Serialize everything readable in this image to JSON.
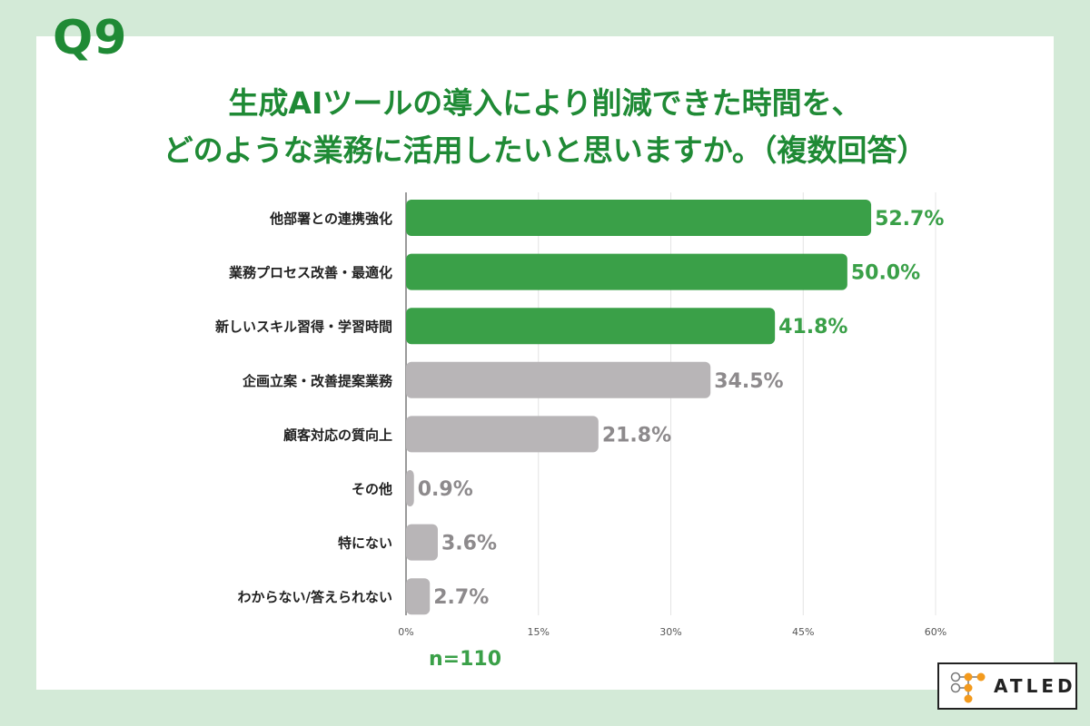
{
  "question_label": "Q9",
  "title_line1": "生成AIツールの導入により削減できた時間を、",
  "title_line2": "どのような業務に活用したいと思いますか。（複数回答）",
  "sample_size": "n=110",
  "logo_text": "ATLED",
  "colors": {
    "highlight": "#3aa048",
    "normal": "#b8b5b7",
    "title": "#1f8a35",
    "background": "#d3ead7",
    "highlight_label": "#3aa048",
    "normal_label": "#8d8a8c"
  },
  "chart_data": {
    "type": "bar",
    "orientation": "horizontal",
    "categories": [
      "他部署との連携強化",
      "業務プロセス改善・最適化",
      "新しいスキル習得・学習時間",
      "企画立案・改善提案業務",
      "顧客対応の質向上",
      "その他",
      "特にない",
      "わからない/答えられない"
    ],
    "values": [
      52.7,
      50.0,
      41.8,
      34.5,
      21.8,
      0.9,
      3.6,
      2.7
    ],
    "value_labels": [
      "52.7%",
      "50.0%",
      "41.8%",
      "34.5%",
      "21.8%",
      "0.9%",
      "3.6%",
      "2.7%"
    ],
    "highlighted": [
      true,
      true,
      true,
      false,
      false,
      false,
      false,
      false
    ],
    "xlim": [
      0,
      60
    ],
    "xticks": [
      0,
      15,
      30,
      45,
      60
    ],
    "xtick_labels": [
      "0%",
      "15%",
      "30%",
      "45%",
      "60%"
    ],
    "grid": true
  }
}
